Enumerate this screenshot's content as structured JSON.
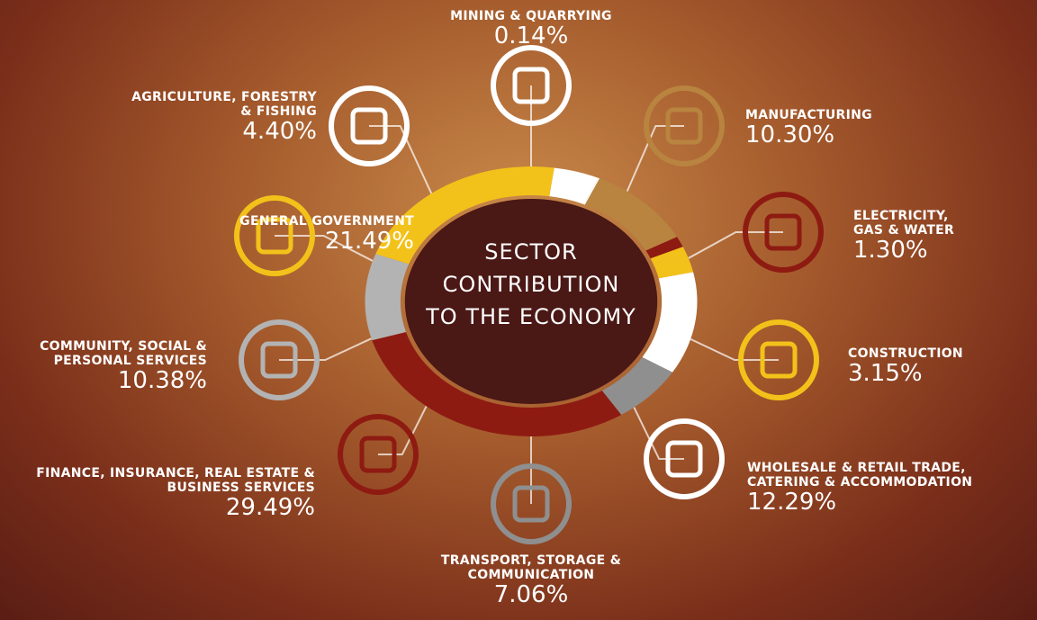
{
  "chart_data": {
    "type": "pie",
    "title": "SECTOR CONTRIBUTION TO THE ECONOMY",
    "categories": [
      "AGRICULTURE, FORESTRY & FISHING",
      "MINING & QUARRYING",
      "MANUFACTURING",
      "ELECTRICITY, GAS & WATER",
      "CONSTRUCTION",
      "WHOLESALE & RETAIL TRADE, CATERING & ACCOMMODATION",
      "TRANSPORT, STORAGE & COMMUNICATION",
      "FINANCE, INSURANCE, REAL ESTATE & BUSINESS SERVICES",
      "COMMUNITY, SOCIAL & PERSONAL SERVICES",
      "GENERAL GOVERNMENT"
    ],
    "values": [
      4.4,
      0.14,
      10.3,
      1.3,
      3.15,
      12.29,
      7.06,
      29.49,
      10.38,
      21.49
    ],
    "value_labels": [
      "4.40%",
      "0.14%",
      "10.30%",
      "1.30%",
      "3.15%",
      "12.29%",
      "7.06%",
      "29.49%",
      "10.38%",
      "21.49%"
    ],
    "colors": [
      "#ffffff",
      "#ffffff",
      "#b8843f",
      "#8e1b12",
      "#f3c21a",
      "#ffffff",
      "#8f8f8f",
      "#8e1b12",
      "#b3b3b3",
      "#f3c21a"
    ]
  }
}
